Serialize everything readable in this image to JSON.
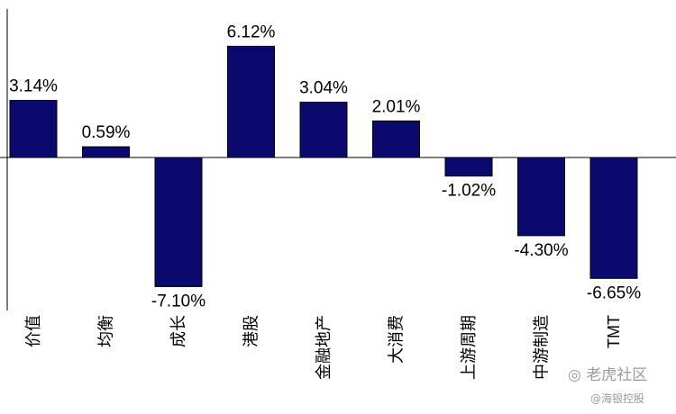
{
  "chart_data": {
    "type": "bar",
    "categories": [
      "价值",
      "均衡",
      "成长",
      "港股",
      "金融地产",
      "大消费",
      "上游周期",
      "中游制造",
      "TMT"
    ],
    "values": [
      3.14,
      0.59,
      -7.1,
      6.12,
      3.04,
      2.01,
      -1.02,
      -4.3,
      -6.65
    ],
    "value_labels": [
      "3.14%",
      "0.59%",
      "-7.10%",
      "6.12%",
      "3.04%",
      "2.01%",
      "-1.02%",
      "-4.30%",
      "-6.65%"
    ],
    "title": "",
    "xlabel": "",
    "ylabel": "",
    "ylim": [
      -8,
      8
    ],
    "grid": false,
    "bar_color": "#0a0a6e"
  },
  "watermark": {
    "main": "老虎社区",
    "sub": "@海银控股"
  }
}
